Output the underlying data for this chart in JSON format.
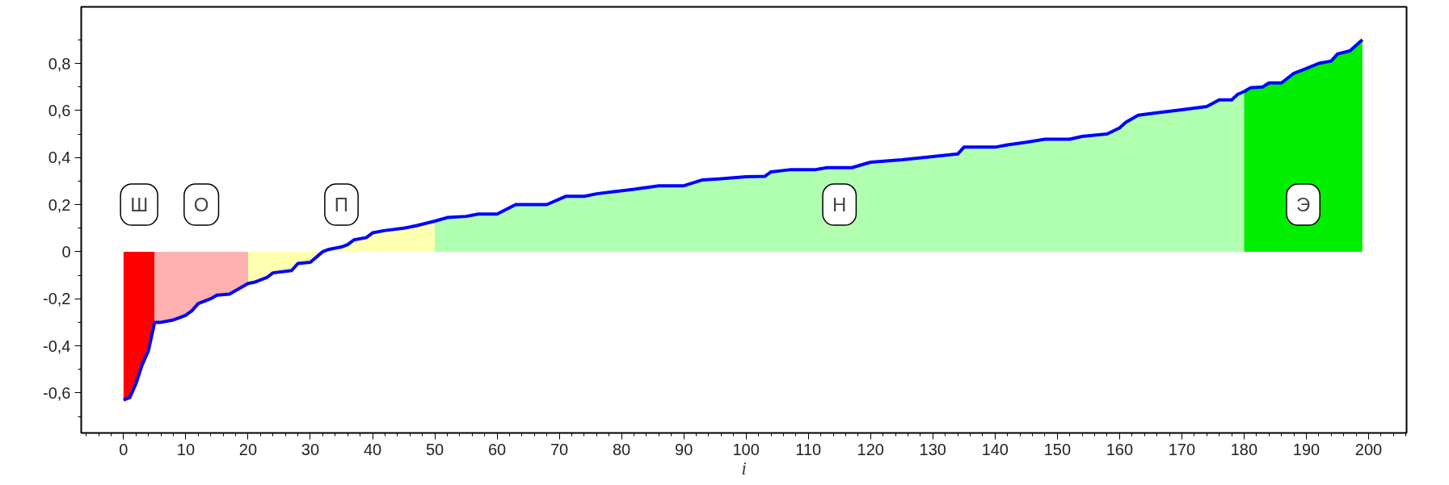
{
  "chart_data": {
    "type": "area",
    "xlabel": "i",
    "xlim": [
      -6.8,
      206.1
    ],
    "ylim": [
      -0.77,
      1.04
    ],
    "grid": false,
    "xticks": [
      {
        "value": -6,
        "label": null
      },
      {
        "value": -4,
        "label": null
      },
      {
        "value": -2,
        "label": null
      },
      0,
      {
        "value": 2,
        "label": null
      },
      {
        "value": 4,
        "label": null
      },
      {
        "value": 6,
        "label": null
      },
      {
        "value": 8,
        "label": null
      },
      10,
      {
        "value": 12,
        "label": null
      },
      {
        "value": 14,
        "label": null
      },
      {
        "value": 16,
        "label": null
      },
      {
        "value": 18,
        "label": null
      },
      20,
      {
        "value": 22,
        "label": null
      },
      {
        "value": 24,
        "label": null
      },
      {
        "value": 26,
        "label": null
      },
      {
        "value": 28,
        "label": null
      },
      30,
      {
        "value": 32,
        "label": null
      },
      {
        "value": 34,
        "label": null
      },
      {
        "value": 36,
        "label": null
      },
      {
        "value": 38,
        "label": null
      },
      40,
      {
        "value": 42,
        "label": null
      },
      {
        "value": 44,
        "label": null
      },
      {
        "value": 46,
        "label": null
      },
      {
        "value": 48,
        "label": null
      },
      50,
      {
        "value": 52,
        "label": null
      },
      {
        "value": 54,
        "label": null
      },
      {
        "value": 56,
        "label": null
      },
      {
        "value": 58,
        "label": null
      },
      60,
      {
        "value": 62,
        "label": null
      },
      {
        "value": 64,
        "label": null
      },
      {
        "value": 66,
        "label": null
      },
      {
        "value": 68,
        "label": null
      },
      70,
      {
        "value": 72,
        "label": null
      },
      {
        "value": 74,
        "label": null
      },
      {
        "value": 76,
        "label": null
      },
      {
        "value": 78,
        "label": null
      },
      80,
      {
        "value": 82,
        "label": null
      },
      {
        "value": 84,
        "label": null
      },
      {
        "value": 86,
        "label": null
      },
      {
        "value": 88,
        "label": null
      },
      90,
      {
        "value": 92,
        "label": null
      },
      {
        "value": 94,
        "label": null
      },
      {
        "value": 96,
        "label": null
      },
      {
        "value": 98,
        "label": null
      },
      100,
      {
        "value": 102,
        "label": null
      },
      {
        "value": 104,
        "label": null
      },
      {
        "value": 106,
        "label": null
      },
      {
        "value": 108,
        "label": null
      },
      110,
      {
        "value": 112,
        "label": null
      },
      {
        "value": 114,
        "label": null
      },
      {
        "value": 116,
        "label": null
      },
      {
        "value": 118,
        "label": null
      },
      120,
      {
        "value": 122,
        "label": null
      },
      {
        "value": 124,
        "label": null
      },
      {
        "value": 126,
        "label": null
      },
      {
        "value": 128,
        "label": null
      },
      130,
      {
        "value": 132,
        "label": null
      },
      {
        "value": 134,
        "label": null
      },
      {
        "value": 136,
        "label": null
      },
      {
        "value": 138,
        "label": null
      },
      140,
      {
        "value": 142,
        "label": null
      },
      {
        "value": 144,
        "label": null
      },
      {
        "value": 146,
        "label": null
      },
      {
        "value": 148,
        "label": null
      },
      150,
      {
        "value": 152,
        "label": null
      },
      {
        "value": 154,
        "label": null
      },
      {
        "value": 156,
        "label": null
      },
      {
        "value": 158,
        "label": null
      },
      160,
      {
        "value": 162,
        "label": null
      },
      {
        "value": 164,
        "label": null
      },
      {
        "value": 166,
        "label": null
      },
      {
        "value": 168,
        "label": null
      },
      170,
      {
        "value": 172,
        "label": null
      },
      {
        "value": 174,
        "label": null
      },
      {
        "value": 176,
        "label": null
      },
      {
        "value": 178,
        "label": null
      },
      180,
      {
        "value": 182,
        "label": null
      },
      {
        "value": 184,
        "label": null
      },
      {
        "value": 186,
        "label": null
      },
      {
        "value": 188,
        "label": null
      },
      190,
      {
        "value": 192,
        "label": null
      },
      {
        "value": 194,
        "label": null
      },
      {
        "value": 196,
        "label": null
      },
      {
        "value": 198,
        "label": null
      },
      200,
      {
        "value": 202,
        "label": null
      },
      {
        "value": 204,
        "label": null
      },
      {
        "value": 206,
        "label": null
      }
    ],
    "yticks": [
      {
        "value": -0.7,
        "label": null
      },
      {
        "value": -0.6,
        "label": "-0,6"
      },
      {
        "value": -0.5,
        "label": null
      },
      {
        "value": -0.4,
        "label": "-0,4"
      },
      {
        "value": -0.3,
        "label": null
      },
      {
        "value": -0.2,
        "label": "-0,2"
      },
      {
        "value": -0.1,
        "label": null
      },
      0,
      {
        "value": 0.1,
        "label": null
      },
      {
        "value": 0.2,
        "label": "0,2"
      },
      {
        "value": 0.3,
        "label": null
      },
      {
        "value": 0.4,
        "label": "0,4"
      },
      {
        "value": 0.5,
        "label": null
      },
      {
        "value": 0.6,
        "label": "0,6"
      },
      {
        "value": 0.7,
        "label": null
      },
      {
        "value": 0.8,
        "label": "0,8"
      },
      {
        "value": 0.9,
        "label": null
      }
    ],
    "series": [
      {
        "name": "Ш",
        "color": "#ff0000",
        "x": [
          0,
          1,
          2,
          3,
          4,
          5
        ],
        "values": [
          -0.63,
          -0.62,
          -0.56,
          -0.48,
          -0.42,
          -0.3
        ]
      },
      {
        "name": "О",
        "color": "#ffb0b0",
        "x": [
          5,
          6,
          8,
          9,
          10,
          11,
          12,
          13,
          14,
          15,
          17,
          19,
          20
        ],
        "values": [
          -0.3,
          -0.3,
          -0.29,
          -0.28,
          -0.27,
          -0.25,
          -0.22,
          -0.21,
          -0.2,
          -0.185,
          -0.18,
          -0.15,
          -0.135
        ]
      },
      {
        "name": "П",
        "color": "#ffffb0",
        "x": [
          20,
          21,
          23,
          24,
          27,
          28,
          30,
          32,
          33,
          35,
          36,
          37,
          39,
          40,
          42,
          45,
          47,
          50
        ],
        "values": [
          -0.135,
          -0.13,
          -0.11,
          -0.09,
          -0.08,
          -0.05,
          -0.045,
          0,
          0.01,
          0.02,
          0.03,
          0.05,
          0.06,
          0.08,
          0.09,
          0.1,
          0.11,
          0.13
        ]
      },
      {
        "name": "Н",
        "color": "#b0ffb0",
        "x": [
          50,
          52,
          55,
          57,
          60,
          63,
          68,
          71,
          74,
          76,
          79,
          82,
          86,
          90,
          93,
          96,
          100,
          103,
          104,
          107,
          111,
          113,
          117,
          120,
          125,
          130,
          134,
          135,
          140,
          142,
          145,
          148,
          152,
          154,
          158,
          160,
          161,
          163,
          166,
          170,
          174,
          176,
          178,
          179,
          180
        ],
        "values": [
          0.13,
          0.145,
          0.15,
          0.16,
          0.16,
          0.2,
          0.2,
          0.235,
          0.235,
          0.246,
          0.256,
          0.265,
          0.28,
          0.28,
          0.305,
          0.31,
          0.318,
          0.32,
          0.339,
          0.348,
          0.348,
          0.357,
          0.357,
          0.38,
          0.39,
          0.404,
          0.415,
          0.444,
          0.444,
          0.454,
          0.465,
          0.478,
          0.478,
          0.49,
          0.5,
          0.526,
          0.55,
          0.58,
          0.59,
          0.603,
          0.617,
          0.645,
          0.645,
          0.669,
          0.68
        ]
      },
      {
        "name": "Э",
        "color": "#00ee00",
        "x": [
          180,
          181,
          183,
          184,
          186,
          188,
          190,
          192,
          194,
          195,
          197,
          199
        ],
        "values": [
          0.68,
          0.696,
          0.7,
          0.717,
          0.717,
          0.758,
          0.778,
          0.8,
          0.81,
          0.84,
          0.853,
          0.9
        ]
      },
      {
        "type": "line",
        "color": "#0000ff",
        "x": [
          0,
          1,
          2,
          3,
          4,
          5,
          6,
          8,
          9,
          10,
          11,
          12,
          13,
          14,
          15,
          17,
          19,
          20,
          21,
          23,
          24,
          27,
          28,
          30,
          32,
          33,
          35,
          36,
          37,
          39,
          40,
          42,
          45,
          47,
          50,
          52,
          55,
          57,
          60,
          63,
          68,
          71,
          74,
          76,
          79,
          82,
          86,
          90,
          93,
          96,
          100,
          103,
          104,
          107,
          111,
          113,
          117,
          120,
          125,
          130,
          134,
          135,
          140,
          142,
          145,
          148,
          152,
          154,
          158,
          160,
          161,
          163,
          166,
          170,
          174,
          176,
          178,
          179,
          180,
          181,
          183,
          184,
          186,
          188,
          190,
          192,
          194,
          195,
          197,
          199
        ],
        "values": [
          -0.63,
          -0.62,
          -0.56,
          -0.48,
          -0.42,
          -0.3,
          -0.3,
          -0.29,
          -0.28,
          -0.27,
          -0.25,
          -0.22,
          -0.21,
          -0.2,
          -0.185,
          -0.18,
          -0.15,
          -0.135,
          -0.13,
          -0.11,
          -0.09,
          -0.08,
          -0.05,
          -0.045,
          0,
          0.01,
          0.02,
          0.03,
          0.05,
          0.06,
          0.08,
          0.09,
          0.1,
          0.11,
          0.13,
          0.145,
          0.15,
          0.16,
          0.16,
          0.2,
          0.2,
          0.235,
          0.235,
          0.246,
          0.256,
          0.265,
          0.28,
          0.28,
          0.305,
          0.31,
          0.318,
          0.32,
          0.339,
          0.348,
          0.348,
          0.357,
          0.357,
          0.38,
          0.39,
          0.404,
          0.415,
          0.444,
          0.444,
          0.454,
          0.465,
          0.478,
          0.478,
          0.49,
          0.5,
          0.526,
          0.55,
          0.58,
          0.59,
          0.603,
          0.617,
          0.645,
          0.645,
          0.669,
          0.68,
          0.696,
          0.7,
          0.717,
          0.717,
          0.758,
          0.778,
          0.8,
          0.81,
          0.84,
          0.853,
          0.9
        ]
      }
    ]
  }
}
